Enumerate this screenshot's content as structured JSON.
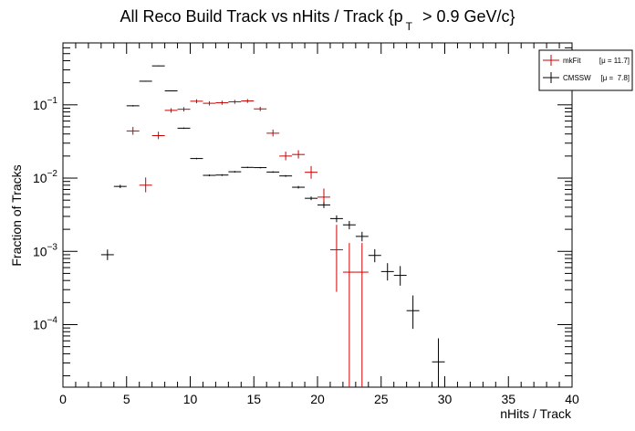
{
  "chart_data": {
    "type": "scatter",
    "title": "All Reco Build Track vs nHits / Track {p",
    "title_sub": "T",
    "title_tail": "> 0.9 GeV/c}",
    "xlabel": "nHits / Track",
    "ylabel": "Fraction of Tracks",
    "xlim": [
      0,
      40
    ],
    "ylim": [
      1.4e-05,
      0.7
    ],
    "yscale": "log",
    "grid": false,
    "legend_position": "top-right",
    "x_ticks": [
      0,
      5,
      10,
      15,
      20,
      25,
      30,
      35,
      40
    ],
    "x_tick_labels": [
      "0",
      "5",
      "10",
      "15",
      "20",
      "25",
      "30",
      "35",
      "40"
    ],
    "y_ticks": [
      0.0001,
      0.001,
      0.01,
      0.1
    ],
    "y_tick_labels": [
      {
        "base": "10",
        "exp": "−4"
      },
      {
        "base": "10",
        "exp": "−3"
      },
      {
        "base": "10",
        "exp": "−2"
      },
      {
        "base": "10",
        "exp": "−1"
      }
    ],
    "series": [
      {
        "name": "mkFit",
        "stat": "[μ = 11.7]",
        "color": "#cc0000",
        "points": [
          {
            "x": 5.5,
            "y": 0.044,
            "lo": 0.039,
            "hi": 0.05
          },
          {
            "x": 6.5,
            "y": 0.008,
            "lo": 0.0064,
            "hi": 0.0102
          },
          {
            "x": 7.5,
            "y": 0.038,
            "lo": 0.034,
            "hi": 0.043
          },
          {
            "x": 8.5,
            "y": 0.084,
            "lo": 0.078,
            "hi": 0.09
          },
          {
            "x": 9.5,
            "y": 0.087,
            "lo": 0.081,
            "hi": 0.093
          },
          {
            "x": 10.5,
            "y": 0.112,
            "lo": 0.105,
            "hi": 0.119
          },
          {
            "x": 11.5,
            "y": 0.105,
            "lo": 0.098,
            "hi": 0.112
          },
          {
            "x": 12.5,
            "y": 0.107,
            "lo": 0.1,
            "hi": 0.114
          },
          {
            "x": 13.5,
            "y": 0.11,
            "lo": 0.103,
            "hi": 0.117
          },
          {
            "x": 14.5,
            "y": 0.113,
            "lo": 0.106,
            "hi": 0.12
          },
          {
            "x": 15.5,
            "y": 0.088,
            "lo": 0.082,
            "hi": 0.094
          },
          {
            "x": 16.5,
            "y": 0.041,
            "lo": 0.037,
            "hi": 0.046
          },
          {
            "x": 17.5,
            "y": 0.02,
            "lo": 0.0175,
            "hi": 0.023
          },
          {
            "x": 18.5,
            "y": 0.021,
            "lo": 0.0185,
            "hi": 0.024
          },
          {
            "x": 19.5,
            "y": 0.012,
            "lo": 0.0098,
            "hi": 0.0146
          },
          {
            "x": 20.5,
            "y": 0.0055,
            "lo": 0.0042,
            "hi": 0.0072
          },
          {
            "x": 21.5,
            "y": 0.00105,
            "lo": 0.00028,
            "hi": 0.0023
          },
          {
            "x": 22.5,
            "y": 0.00052,
            "lo": 1.4e-05,
            "hi": 0.0013
          },
          {
            "x": 23.5,
            "y": 0.00052,
            "lo": 1.4e-05,
            "hi": 0.0013
          }
        ]
      },
      {
        "name": "CMSSW",
        "stat": "[μ =  7.8]",
        "color": "#000000",
        "points": [
          {
            "x": 3.5,
            "y": 0.0009,
            "lo": 0.00076,
            "hi": 0.00106
          },
          {
            "x": 4.5,
            "y": 0.0077,
            "lo": 0.0073,
            "hi": 0.0081
          },
          {
            "x": 5.5,
            "y": 0.097,
            "lo": 0.095,
            "hi": 0.099
          },
          {
            "x": 6.5,
            "y": 0.21,
            "lo": 0.207,
            "hi": 0.213
          },
          {
            "x": 7.5,
            "y": 0.34,
            "lo": 0.336,
            "hi": 0.344
          },
          {
            "x": 8.5,
            "y": 0.155,
            "lo": 0.153,
            "hi": 0.157
          },
          {
            "x": 9.5,
            "y": 0.048,
            "lo": 0.047,
            "hi": 0.049
          },
          {
            "x": 10.5,
            "y": 0.0185,
            "lo": 0.0181,
            "hi": 0.0189
          },
          {
            "x": 11.5,
            "y": 0.0109,
            "lo": 0.0106,
            "hi": 0.0112
          },
          {
            "x": 12.5,
            "y": 0.011,
            "lo": 0.0107,
            "hi": 0.0113
          },
          {
            "x": 13.5,
            "y": 0.0122,
            "lo": 0.0119,
            "hi": 0.0125
          },
          {
            "x": 14.5,
            "y": 0.014,
            "lo": 0.0137,
            "hi": 0.0143
          },
          {
            "x": 15.5,
            "y": 0.0139,
            "lo": 0.0136,
            "hi": 0.0142
          },
          {
            "x": 16.5,
            "y": 0.0121,
            "lo": 0.0118,
            "hi": 0.0124
          },
          {
            "x": 17.5,
            "y": 0.0107,
            "lo": 0.0104,
            "hi": 0.011
          },
          {
            "x": 18.5,
            "y": 0.0075,
            "lo": 0.0072,
            "hi": 0.0078
          },
          {
            "x": 19.5,
            "y": 0.0053,
            "lo": 0.005,
            "hi": 0.0056
          },
          {
            "x": 20.5,
            "y": 0.0043,
            "lo": 0.0039,
            "hi": 0.0047
          },
          {
            "x": 21.5,
            "y": 0.0028,
            "lo": 0.0025,
            "hi": 0.0031
          },
          {
            "x": 22.5,
            "y": 0.0023,
            "lo": 0.002,
            "hi": 0.0026
          },
          {
            "x": 23.5,
            "y": 0.0016,
            "lo": 0.00137,
            "hi": 0.00185
          },
          {
            "x": 24.5,
            "y": 0.00088,
            "lo": 0.00071,
            "hi": 0.00107
          },
          {
            "x": 25.5,
            "y": 0.00053,
            "lo": 0.0004,
            "hi": 0.00069
          },
          {
            "x": 26.5,
            "y": 0.00047,
            "lo": 0.00034,
            "hi": 0.00063
          },
          {
            "x": 27.5,
            "y": 0.000155,
            "lo": 8.75e-05,
            "hi": 0.00025
          },
          {
            "x": 29.5,
            "y": 3.1e-05,
            "lo": 1.4e-05,
            "hi": 6.5e-05
          }
        ]
      }
    ]
  }
}
